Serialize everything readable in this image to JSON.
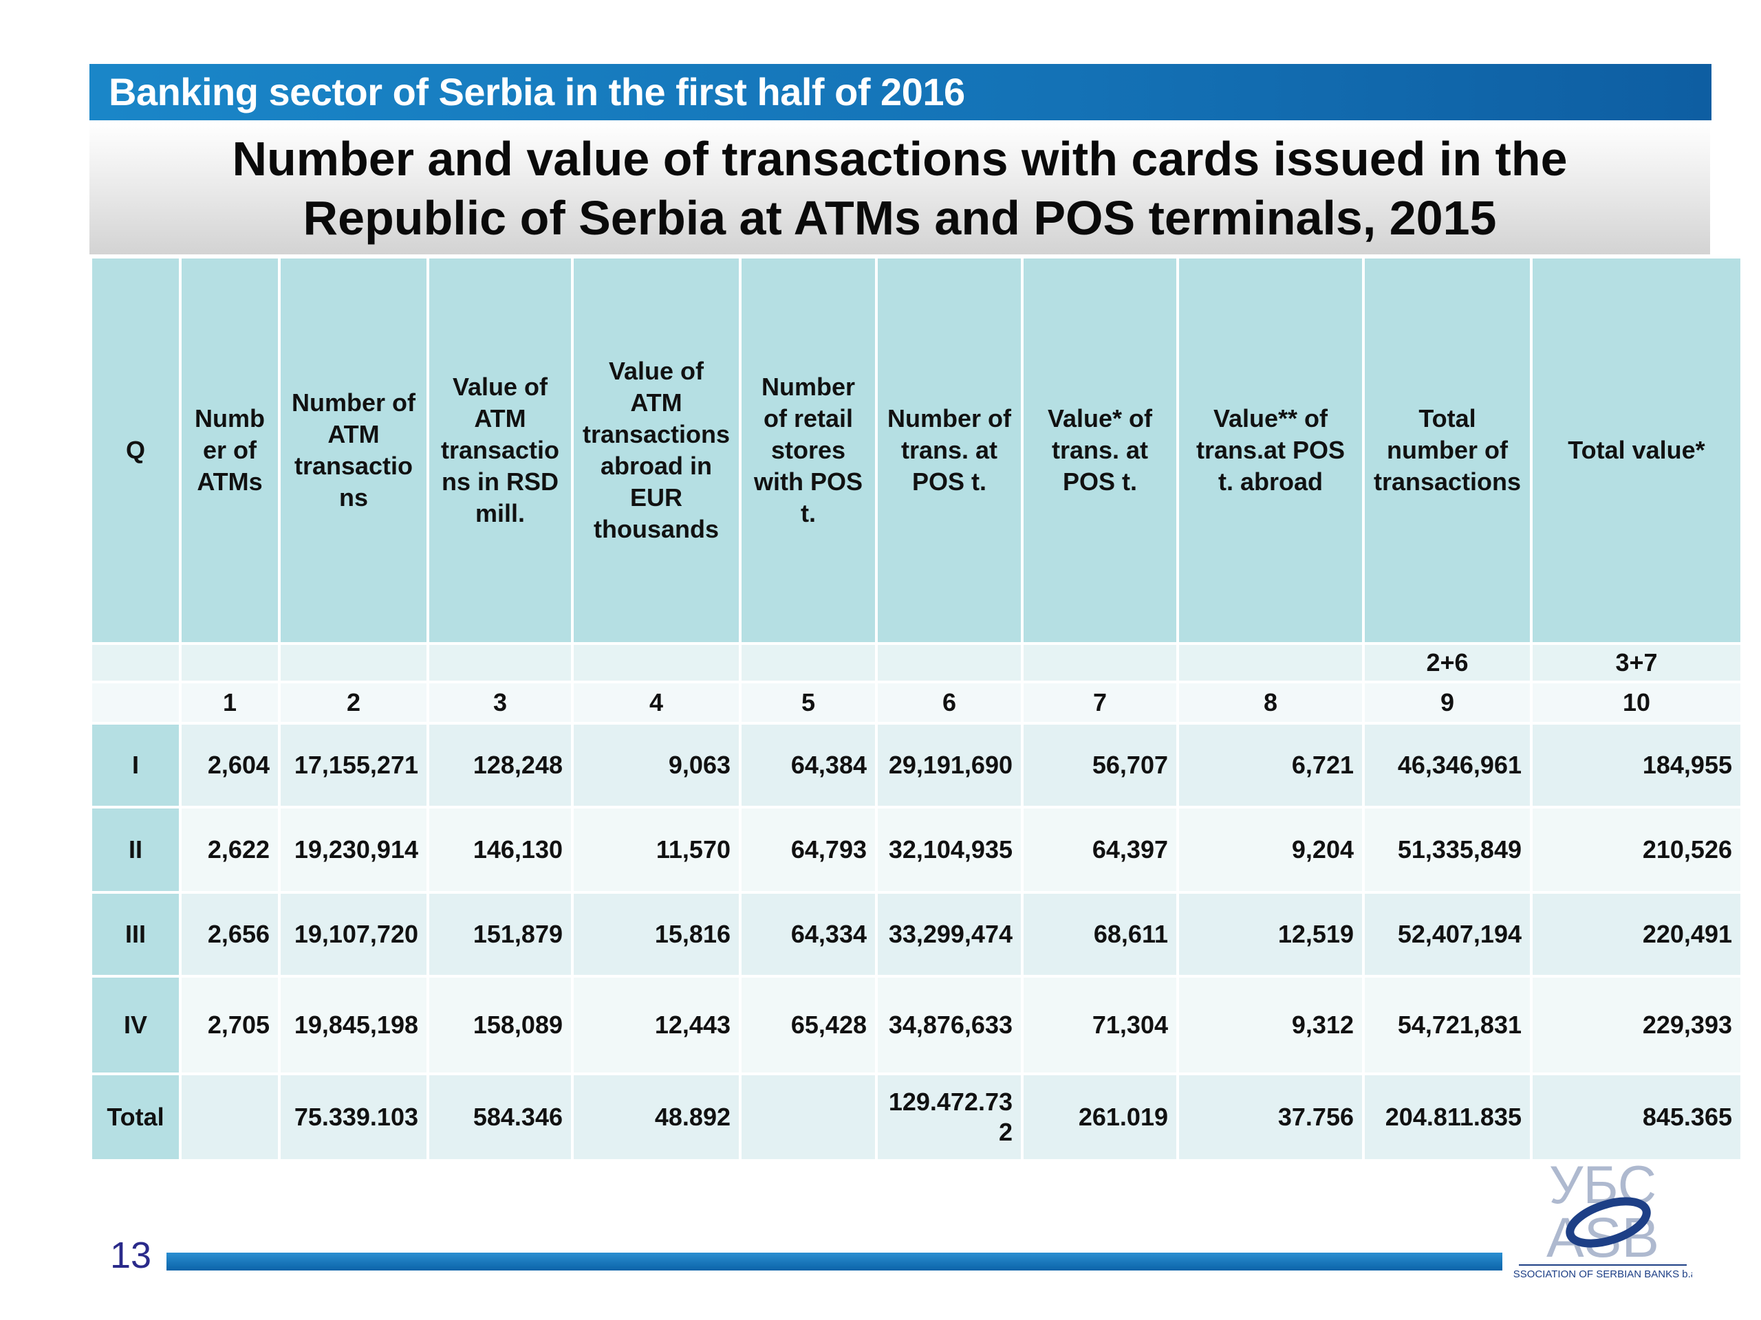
{
  "header": {
    "text": "Banking sector of Serbia in the first half of 2016"
  },
  "title": {
    "line1": "Number and value of transactions with cards issued in the",
    "line2": "Republic of Serbia at ATMs and POS terminals, 2015"
  },
  "table": {
    "headers": [
      "Q",
      "Numb er of ATMs",
      "Number of ATM transactio ns",
      "Value of ATM transactio ns in RSD mill.",
      "Value of ATM transactions abroad in EUR thousands",
      "Number of retail stores with POS t.",
      "Number of trans. at POS t.",
      "Value* of trans. at POS t.",
      "Value** of trans.at POS t. abroad",
      "Total number of transactions",
      "Total value*"
    ],
    "formula_row": [
      "",
      "",
      "",
      "",
      "",
      "",
      "",
      "",
      "",
      "2+6",
      "3+7"
    ],
    "index_row": [
      "",
      "1",
      "2",
      "3",
      "4",
      "5",
      "6",
      "7",
      "8",
      "9",
      "10"
    ],
    "rows": [
      [
        "I",
        "2,604",
        "17,155,271",
        "128,248",
        "9,063",
        "64,384",
        "29,191,690",
        "56,707",
        "6,721",
        "46,346,961",
        "184,955"
      ],
      [
        "II",
        "2,622",
        "19,230,914",
        "146,130",
        "11,570",
        "64,793",
        "32,104,935",
        "64,397",
        "9,204",
        "51,335,849",
        "210,526"
      ],
      [
        "III",
        "2,656",
        "19,107,720",
        "151,879",
        "15,816",
        "64,334",
        "33,299,474",
        "68,611",
        "12,519",
        "52,407,194",
        "220,491"
      ],
      [
        "IV",
        "2,705",
        "19,845,198",
        "158,089",
        "12,443",
        "65,428",
        "34,876,633",
        "71,304",
        "9,312",
        "54,721,831",
        "229,393"
      ],
      [
        "Total",
        "",
        "75.339.103",
        "584.346",
        "48.892",
        "",
        "129.472.732",
        "261.019",
        "37.756",
        "204.811.835",
        "845.365"
      ]
    ]
  },
  "footer": {
    "page_number": "13"
  },
  "logo": {
    "letters_top": "УБС",
    "letters_bottom": "ASB",
    "caption": "ASSOCIATION OF SERBIAN BANKS b.a."
  },
  "colors": {
    "header_blue": "#1472b6",
    "table_header": "#b5dfe3",
    "row_light": "#e3f1f3",
    "row_lighter": "#f2f9f9"
  }
}
